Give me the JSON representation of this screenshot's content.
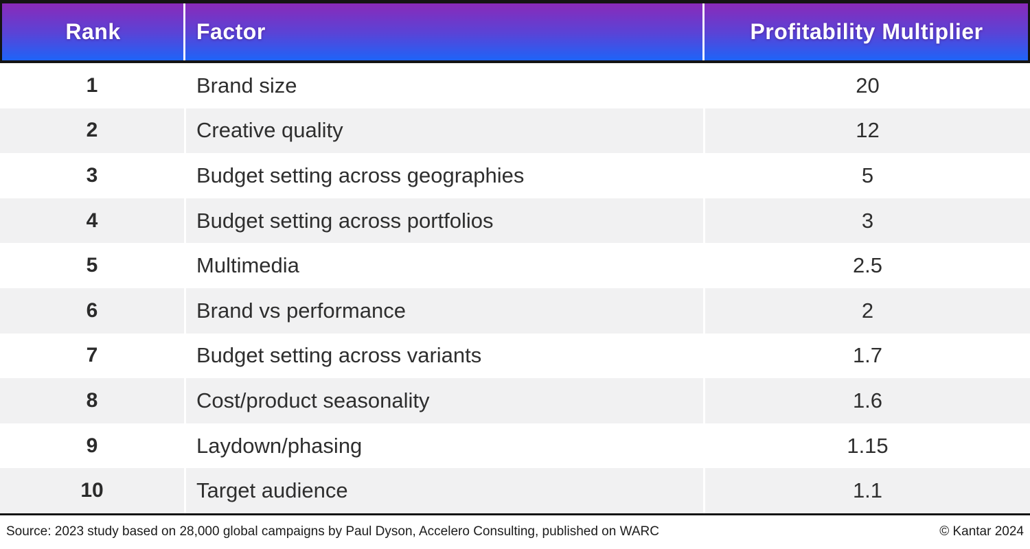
{
  "chart_data": {
    "type": "table",
    "columns": [
      "Rank",
      "Factor",
      "Profitability Multiplier"
    ],
    "rows": [
      [
        1,
        "Brand size",
        20
      ],
      [
        2,
        "Creative quality",
        12
      ],
      [
        3,
        "Budget setting across geographies",
        5
      ],
      [
        4,
        "Budget setting across portfolios",
        3
      ],
      [
        5,
        "Multimedia",
        2.5
      ],
      [
        6,
        "Brand vs performance",
        2
      ],
      [
        7,
        "Budget setting across variants",
        1.7
      ],
      [
        8,
        "Cost/product seasonality",
        1.6
      ],
      [
        9,
        "Laydown/phasing",
        1.15
      ],
      [
        10,
        "Target audience",
        1.1
      ]
    ],
    "source": "Source: 2023 study based on 28,000 global campaigns by Paul Dyson, Accelero Consulting, published on WARC",
    "copyright": "© Kantar 2024"
  },
  "header": {
    "rank": "Rank",
    "factor": "Factor",
    "multiplier": "Profitability Multiplier"
  },
  "table": {
    "rows": [
      {
        "rank": "1",
        "factor": "Brand size",
        "multiplier": "20"
      },
      {
        "rank": "2",
        "factor": "Creative quality",
        "multiplier": "12"
      },
      {
        "rank": "3",
        "factor": "Budget setting across geographies",
        "multiplier": "5"
      },
      {
        "rank": "4",
        "factor": "Budget setting across portfolios",
        "multiplier": "3"
      },
      {
        "rank": "5",
        "factor": "Multimedia",
        "multiplier": "2.5"
      },
      {
        "rank": "6",
        "factor": "Brand vs performance",
        "multiplier": "2"
      },
      {
        "rank": "7",
        "factor": "Budget setting across variants",
        "multiplier": "1.7"
      },
      {
        "rank": "8",
        "factor": "Cost/product seasonality",
        "multiplier": "1.6"
      },
      {
        "rank": "9",
        "factor": "Laydown/phasing",
        "multiplier": "1.15"
      },
      {
        "rank": "10",
        "factor": "Target audience",
        "multiplier": "1.1"
      }
    ]
  },
  "footer": {
    "source": "Source: 2023 study based on 28,000 global campaigns by Paul Dyson, Accelero Consulting, published on WARC",
    "copyright": "© Kantar 2024"
  },
  "colors": {
    "header_gradient_top": "#8a2ab9",
    "header_gradient_bottom": "#1e64f8",
    "row_alt_background": "#f1f1f2",
    "border": "#141414",
    "body_text": "#2e2e2e",
    "header_text": "#ffffff"
  }
}
